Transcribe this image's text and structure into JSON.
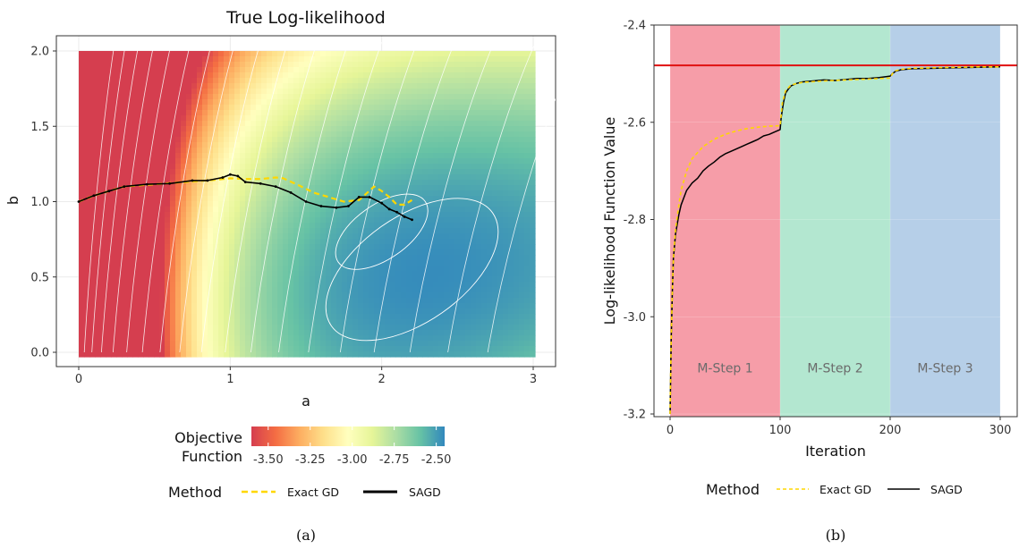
{
  "chart_data": [
    {
      "type": "contour",
      "title": "True Log-likelihood",
      "xlabel": "a",
      "ylabel": "b",
      "xlim": [
        0,
        3
      ],
      "ylim": [
        0,
        2
      ],
      "xticks": [
        0,
        1,
        2,
        3
      ],
      "xtick_labels": [
        "0",
        "1",
        "2",
        "3"
      ],
      "yticks": [
        0.0,
        0.5,
        1.0,
        1.5,
        2.0
      ],
      "ytick_labels": [
        "0.0",
        "0.5",
        "1.0",
        "1.5",
        "2.0"
      ],
      "colorbar": {
        "title_lines": [
          "Objective",
          "Function"
        ],
        "range": [
          -3.6,
          -2.45
        ],
        "ticks": [
          -3.5,
          -3.25,
          -3.0,
          -2.75,
          -2.5
        ],
        "tick_labels": [
          "-3.50",
          "-3.25",
          "-3.00",
          "-2.75",
          "-2.50"
        ],
        "colors": [
          "#d53e4f",
          "#f46d43",
          "#fdae61",
          "#fee08b",
          "#ffffbf",
          "#e6f598",
          "#abdda4",
          "#66c2a5",
          "#3288bd"
        ]
      },
      "legend": {
        "title": "Method",
        "entries": [
          {
            "label": "Exact GD",
            "color": "#ffd700",
            "style": "dashed"
          },
          {
            "label": "SAGD",
            "color": "#000000",
            "style": "solid"
          }
        ]
      },
      "series": [
        {
          "name": "Exact GD",
          "color": "#ffd700",
          "points": [
            [
              0,
              1.0
            ],
            [
              0.1,
              1.04
            ],
            [
              0.2,
              1.07
            ],
            [
              0.3,
              1.1
            ],
            [
              0.5,
              1.115
            ],
            [
              0.7,
              1.13
            ],
            [
              0.9,
              1.145
            ],
            [
              1.0,
              1.155
            ],
            [
              1.1,
              1.15
            ],
            [
              1.2,
              1.15
            ],
            [
              1.3,
              1.16
            ],
            [
              1.35,
              1.155
            ],
            [
              1.45,
              1.11
            ],
            [
              1.55,
              1.06
            ],
            [
              1.65,
              1.03
            ],
            [
              1.75,
              1.0
            ],
            [
              1.85,
              1.01
            ],
            [
              1.95,
              1.1
            ],
            [
              2.0,
              1.07
            ],
            [
              2.05,
              1.03
            ],
            [
              2.1,
              0.98
            ],
            [
              2.15,
              0.98
            ],
            [
              2.2,
              1.01
            ]
          ]
        },
        {
          "name": "SAGD",
          "color": "#000000",
          "points": [
            [
              0,
              1.0
            ],
            [
              0.1,
              1.04
            ],
            [
              0.2,
              1.07
            ],
            [
              0.3,
              1.1
            ],
            [
              0.45,
              1.115
            ],
            [
              0.6,
              1.12
            ],
            [
              0.75,
              1.14
            ],
            [
              0.85,
              1.14
            ],
            [
              0.95,
              1.16
            ],
            [
              1.0,
              1.18
            ],
            [
              1.05,
              1.17
            ],
            [
              1.1,
              1.13
            ],
            [
              1.2,
              1.12
            ],
            [
              1.3,
              1.1
            ],
            [
              1.4,
              1.06
            ],
            [
              1.5,
              1.0
            ],
            [
              1.6,
              0.97
            ],
            [
              1.7,
              0.96
            ],
            [
              1.78,
              0.97
            ],
            [
              1.85,
              1.03
            ],
            [
              1.92,
              1.03
            ],
            [
              2.0,
              0.99
            ],
            [
              2.05,
              0.95
            ],
            [
              2.1,
              0.93
            ],
            [
              2.15,
              0.9
            ],
            [
              2.2,
              0.88
            ]
          ]
        }
      ],
      "caption": "(a)"
    },
    {
      "type": "line",
      "title": "",
      "xlabel": "Iteration",
      "ylabel": "Log-likelihood Function Value",
      "xlim": [
        -5,
        305
      ],
      "ylim": [
        -3.21,
        -2.4
      ],
      "xticks": [
        0,
        100,
        200,
        300
      ],
      "xtick_labels": [
        "0",
        "100",
        "200",
        "300"
      ],
      "yticks": [
        -3.2,
        -3.0,
        -2.8,
        -2.6,
        -2.4
      ],
      "ytick_labels": [
        "-3.2",
        "-3.0",
        "-2.8",
        "-2.6",
        "-2.4"
      ],
      "reference_line": {
        "y": -2.483,
        "color": "#e01010"
      },
      "regions": [
        {
          "label": "M-Step 1",
          "x_start": 0,
          "x_end": 100,
          "color": "#f4828f",
          "label_y": -3.105
        },
        {
          "label": "M-Step 2",
          "x_start": 100,
          "x_end": 200,
          "color": "#9ee0c3",
          "label_y": -3.105
        },
        {
          "label": "M-Step 3",
          "x_start": 200,
          "x_end": 300,
          "color": "#a2c2e2",
          "label_y": -3.105
        }
      ],
      "legend": {
        "title": "Method",
        "entries": [
          {
            "label": "Exact GD",
            "color": "#ffd700",
            "style": "dashed"
          },
          {
            "label": "SAGD",
            "color": "#000000",
            "style": "solid"
          }
        ]
      },
      "series": [
        {
          "name": "Exact GD",
          "color": "#ffd700",
          "x": [
            0,
            1,
            2,
            3,
            5,
            8,
            10,
            15,
            20,
            30,
            40,
            50,
            60,
            70,
            80,
            90,
            100,
            102,
            105,
            110,
            120,
            140,
            160,
            180,
            200,
            202,
            205,
            210,
            220,
            240,
            260,
            280,
            300
          ],
          "y": [
            -3.2,
            -3.05,
            -2.95,
            -2.88,
            -2.82,
            -2.77,
            -2.74,
            -2.7,
            -2.675,
            -2.65,
            -2.635,
            -2.625,
            -2.618,
            -2.613,
            -2.61,
            -2.608,
            -2.607,
            -2.56,
            -2.535,
            -2.523,
            -2.518,
            -2.515,
            -2.513,
            -2.511,
            -2.509,
            -2.5,
            -2.494,
            -2.491,
            -2.489,
            -2.488,
            -2.487,
            -2.486,
            -2.486
          ]
        },
        {
          "name": "SAGD",
          "color": "#000000",
          "x": [
            0,
            1,
            2,
            3,
            5,
            8,
            10,
            15,
            20,
            25,
            30,
            35,
            40,
            45,
            50,
            55,
            60,
            65,
            70,
            75,
            80,
            85,
            90,
            95,
            100,
            101,
            103,
            105,
            108,
            110,
            115,
            120,
            130,
            140,
            150,
            160,
            170,
            180,
            190,
            200,
            202,
            205,
            210,
            220,
            240,
            260,
            280,
            300
          ],
          "y": [
            -3.2,
            -3.05,
            -2.95,
            -2.88,
            -2.83,
            -2.79,
            -2.77,
            -2.74,
            -2.725,
            -2.715,
            -2.7,
            -2.69,
            -2.682,
            -2.672,
            -2.665,
            -2.66,
            -2.655,
            -2.65,
            -2.645,
            -2.64,
            -2.635,
            -2.628,
            -2.625,
            -2.62,
            -2.615,
            -2.59,
            -2.56,
            -2.54,
            -2.53,
            -2.525,
            -2.52,
            -2.517,
            -2.515,
            -2.513,
            -2.514,
            -2.512,
            -2.51,
            -2.51,
            -2.508,
            -2.505,
            -2.5,
            -2.495,
            -2.492,
            -2.49,
            -2.489,
            -2.488,
            -2.487,
            -2.486
          ]
        }
      ],
      "caption": "(b)"
    }
  ]
}
